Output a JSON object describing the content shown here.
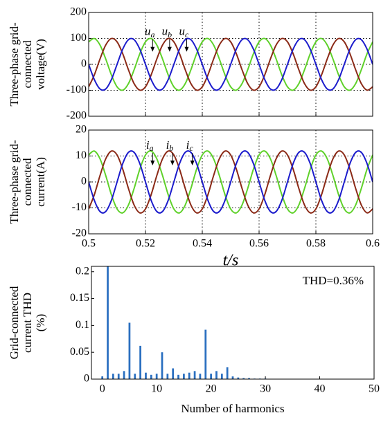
{
  "chart_data": [
    {
      "type": "line",
      "ylabel": [
        "Three-phase grid-",
        "connected",
        "voltage(V)"
      ],
      "x": [
        0.5,
        0.502,
        0.504,
        0.506,
        0.508,
        0.51,
        0.512,
        0.514,
        0.516,
        0.518,
        0.52,
        0.522,
        0.524,
        0.526,
        0.528,
        0.53,
        0.532,
        0.534,
        0.536,
        0.538,
        0.54,
        0.542,
        0.544,
        0.546,
        0.548,
        0.55,
        0.552,
        0.554,
        0.556,
        0.558,
        0.56,
        0.562,
        0.564,
        0.566,
        0.568,
        0.57,
        0.572,
        0.574,
        0.576,
        0.578,
        0.58,
        0.582,
        0.584,
        0.586,
        0.588,
        0.59,
        0.592,
        0.594,
        0.596,
        0.598,
        0.6
      ],
      "series": [
        {
          "name": "ua",
          "color": "#5fd12a",
          "values": [
            86.6,
            99.5,
            74.3,
            20.8,
            -40.7,
            -86.6,
            -99.5,
            -74.3,
            -20.8,
            40.7,
            86.6,
            99.5,
            74.3,
            20.8,
            -40.7,
            -86.6,
            -99.5,
            -74.3,
            -20.8,
            40.7,
            86.6,
            99.5,
            74.3,
            20.8,
            -40.7,
            -86.6,
            -99.5,
            -74.3,
            -20.8,
            40.7,
            86.6,
            99.5,
            74.3,
            20.8,
            -40.7,
            -86.6,
            -99.5,
            -74.3,
            -20.8,
            40.7,
            86.6,
            99.5,
            74.3,
            20.8,
            -40.7,
            -86.6,
            -99.5,
            -74.3,
            -20.8,
            40.7,
            86.6
          ]
        },
        {
          "name": "ub",
          "color": "#8b2a17",
          "values": [
            -86.6,
            -40.7,
            20.8,
            74.3,
            99.5,
            86.6,
            40.7,
            -20.8,
            -74.3,
            -99.5,
            -86.6,
            -40.7,
            20.8,
            74.3,
            99.5,
            86.6,
            40.7,
            -20.8,
            -74.3,
            -99.5,
            -86.6,
            -40.7,
            20.8,
            74.3,
            99.5,
            86.6,
            40.7,
            -20.8,
            -74.3,
            -99.5,
            -86.6,
            -40.7,
            20.8,
            74.3,
            99.5,
            86.6,
            40.7,
            -20.8,
            -74.3,
            -99.5,
            -86.6,
            -40.7,
            20.8,
            74.3,
            99.5,
            86.6,
            40.7,
            -20.8,
            -74.3,
            -99.5,
            -86.6
          ]
        },
        {
          "name": "uc",
          "color": "#1c1ccc",
          "values": [
            0,
            -58.8,
            -95.1,
            -95.1,
            -58.8,
            0,
            58.8,
            95.1,
            95.1,
            58.8,
            0,
            -58.8,
            -95.1,
            -95.1,
            -58.8,
            0,
            58.8,
            95.1,
            95.1,
            58.8,
            0,
            -58.8,
            -95.1,
            -95.1,
            -58.8,
            0,
            58.8,
            95.1,
            95.1,
            58.8,
            0,
            -58.8,
            -95.1,
            -95.1,
            -58.8,
            0,
            58.8,
            95.1,
            95.1,
            58.8,
            0,
            -58.8,
            -95.1,
            -95.1,
            -58.8,
            0,
            58.8,
            95.1,
            95.1,
            58.8,
            0
          ]
        }
      ],
      "xlim": [
        0.5,
        0.6
      ],
      "xticks": [
        0.5,
        0.52,
        0.54,
        0.56,
        0.58,
        0.6
      ],
      "show_xtick_labels": false,
      "ylim": [
        -200,
        200
      ],
      "yticks": [
        -200,
        -100,
        0,
        100,
        200
      ],
      "grid": true
    },
    {
      "type": "line",
      "ylabel": [
        "Three-phase grid-",
        "connected",
        "current(A)"
      ],
      "xlabel": "t/s",
      "x": [
        0.5,
        0.502,
        0.504,
        0.506,
        0.508,
        0.51,
        0.512,
        0.514,
        0.516,
        0.518,
        0.52,
        0.522,
        0.524,
        0.526,
        0.528,
        0.53,
        0.532,
        0.534,
        0.536,
        0.538,
        0.54,
        0.542,
        0.544,
        0.546,
        0.548,
        0.55,
        0.552,
        0.554,
        0.556,
        0.558,
        0.56,
        0.562,
        0.564,
        0.566,
        0.568,
        0.57,
        0.572,
        0.574,
        0.576,
        0.578,
        0.58,
        0.582,
        0.584,
        0.586,
        0.588,
        0.59,
        0.592,
        0.594,
        0.596,
        0.598,
        0.6
      ],
      "series": [
        {
          "name": "ia",
          "color": "#5fd12a",
          "values": [
            10.4,
            11.9,
            8.9,
            2.5,
            -4.9,
            -10.4,
            -11.9,
            -8.9,
            -2.5,
            4.9,
            10.4,
            11.9,
            8.9,
            2.5,
            -4.9,
            -10.4,
            -11.9,
            -8.9,
            -2.5,
            4.9,
            10.4,
            11.9,
            8.9,
            2.5,
            -4.9,
            -10.4,
            -11.9,
            -8.9,
            -2.5,
            4.9,
            10.4,
            11.9,
            8.9,
            2.5,
            -4.9,
            -10.4,
            -11.9,
            -8.9,
            -2.5,
            4.9,
            10.4,
            11.9,
            8.9,
            2.5,
            -4.9,
            -10.4,
            -11.9,
            -8.9,
            -2.5,
            4.9,
            10.4
          ]
        },
        {
          "name": "ib",
          "color": "#8b2a17",
          "values": [
            -10.4,
            -4.9,
            2.5,
            8.9,
            11.9,
            10.4,
            4.9,
            -2.5,
            -8.9,
            -11.9,
            -10.4,
            -4.9,
            2.5,
            8.9,
            11.9,
            10.4,
            4.9,
            -2.5,
            -8.9,
            -11.9,
            -10.4,
            -4.9,
            2.5,
            8.9,
            11.9,
            10.4,
            4.9,
            -2.5,
            -8.9,
            -11.9,
            -10.4,
            -4.9,
            2.5,
            8.9,
            11.9,
            10.4,
            4.9,
            -2.5,
            -8.9,
            -11.9,
            -10.4,
            -4.9,
            2.5,
            8.9,
            11.9,
            10.4,
            4.9,
            -2.5,
            -8.9,
            -11.9,
            -10.4
          ]
        },
        {
          "name": "ic",
          "color": "#1c1ccc",
          "values": [
            0,
            -7.1,
            -11.4,
            -11.4,
            -7.1,
            0,
            7.1,
            11.4,
            11.4,
            7.1,
            0,
            -7.1,
            -11.4,
            -11.4,
            -7.1,
            0,
            7.1,
            11.4,
            11.4,
            7.1,
            0,
            -7.1,
            -11.4,
            -11.4,
            -7.1,
            0,
            7.1,
            11.4,
            11.4,
            7.1,
            0,
            -7.1,
            -11.4,
            -11.4,
            -7.1,
            0,
            7.1,
            11.4,
            11.4,
            7.1,
            0,
            -7.1,
            -11.4,
            -11.4,
            -7.1,
            0,
            7.1,
            11.4,
            11.4,
            7.1,
            0
          ]
        }
      ],
      "xlim": [
        0.5,
        0.6
      ],
      "xticks": [
        0.5,
        0.52,
        0.54,
        0.56,
        0.58,
        0.6
      ],
      "show_xtick_labels": true,
      "ylim": [
        -20,
        20
      ],
      "yticks": [
        -20,
        -10,
        0,
        10,
        20
      ],
      "grid": true
    },
    {
      "type": "bar",
      "ylabel": [
        "Grid-connected",
        "current THD",
        "(%)"
      ],
      "xlabel": "Number of harmonics",
      "annotation": "THD=0.36%",
      "x": [
        0,
        1,
        2,
        3,
        4,
        5,
        6,
        7,
        8,
        9,
        10,
        11,
        12,
        13,
        14,
        15,
        16,
        17,
        18,
        19,
        20,
        21,
        22,
        23,
        24,
        25,
        26,
        27,
        28,
        29,
        30
      ],
      "values": [
        0.005,
        0.21,
        0.01,
        0.01,
        0.015,
        0.105,
        0.01,
        0.062,
        0.012,
        0.008,
        0.01,
        0.05,
        0.01,
        0.02,
        0.008,
        0.01,
        0.012,
        0.015,
        0.01,
        0.092,
        0.01,
        0.015,
        0.01,
        0.022,
        0.005,
        0.003,
        0.002,
        0.002,
        0.001,
        0.001,
        0.001
      ],
      "color": "#2a6fc0",
      "xlim": [
        -2,
        50
      ],
      "xticks": [
        0,
        10,
        20,
        30,
        40,
        50
      ],
      "ylim": [
        0,
        0.21
      ],
      "yticks": [
        0,
        0.05,
        0.1,
        0.15,
        0.2
      ],
      "show_xtick_labels": true
    }
  ]
}
